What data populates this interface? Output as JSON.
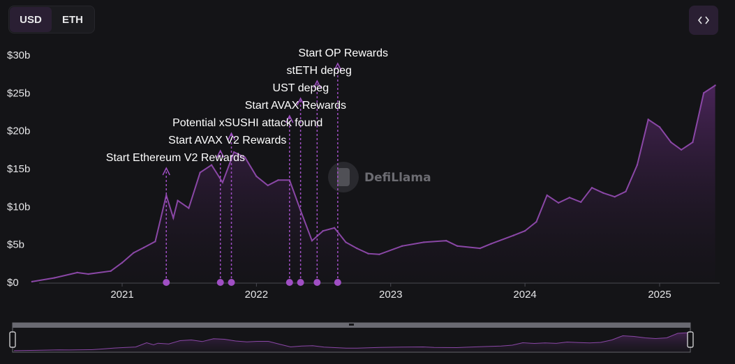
{
  "toggle": {
    "usd": "USD",
    "eth": "ETH",
    "selected": "USD"
  },
  "embed_icon": "code-brackets-icon",
  "watermark": {
    "text": "DefiLlama",
    "icon": "llama-logo-icon"
  },
  "colors": {
    "line": "#8a47a6",
    "area_top": "#5b2a6e",
    "marker": "#a04fc4",
    "background": "#141417"
  },
  "chart_data": {
    "type": "area",
    "title": "",
    "xlabel": "",
    "ylabel": "",
    "y_unit": "b",
    "ylim": [
      0,
      30
    ],
    "yticks": [
      "$0",
      "$5b",
      "$10b",
      "$15b",
      "$20b",
      "$25b",
      "$30b"
    ],
    "xticks": [
      "2021",
      "2022",
      "2023",
      "2024",
      "2025"
    ],
    "grid": false,
    "series": [
      {
        "x": [
          "2020-05",
          "2020-07",
          "2020-09",
          "2020-10",
          "2020-12",
          "2021-01",
          "2021-02",
          "2021-03",
          "2021-04",
          "2021-05",
          "2021-05-20",
          "2021-06",
          "2021-07",
          "2021-08",
          "2021-09",
          "2021-10",
          "2021-11",
          "2021-12",
          "2022-01",
          "2022-02",
          "2022-03",
          "2022-04",
          "2022-05",
          "2022-06",
          "2022-07",
          "2022-08",
          "2022-09",
          "2022-10",
          "2022-11",
          "2022-12",
          "2023-02",
          "2023-04",
          "2023-06",
          "2023-07",
          "2023-09",
          "2023-10",
          "2023-12",
          "2024-01",
          "2024-02",
          "2024-03",
          "2024-04",
          "2024-05",
          "2024-06",
          "2024-07",
          "2024-08",
          "2024-09",
          "2024-10",
          "2024-11",
          "2024-12",
          "2025-01",
          "2025-02",
          "2025-03",
          "2025-04",
          "2025-05",
          "2025-06"
        ],
        "y": [
          0.1,
          0.6,
          1.3,
          1.1,
          1.5,
          2.6,
          3.9,
          4.6,
          5.4,
          11.5,
          8.5,
          10.8,
          9.8,
          14.5,
          15.5,
          13.2,
          17.2,
          16.5,
          14.0,
          12.8,
          13.5,
          13.5,
          9.5,
          5.5,
          6.8,
          7.2,
          5.3,
          4.5,
          3.8,
          3.7,
          4.8,
          5.3,
          5.5,
          4.8,
          4.5,
          5.1,
          6.2,
          6.8,
          8.0,
          11.5,
          10.5,
          11.2,
          10.6,
          12.5,
          11.8,
          11.3,
          12.0,
          15.5,
          21.5,
          20.5,
          18.5,
          17.5,
          18.5,
          25.0,
          26.0
        ]
      }
    ],
    "annotations": [
      {
        "date": "2021-05",
        "label": "Start Ethereum V2 Rewards"
      },
      {
        "date": "2021-09-25",
        "label": "Start AVAX V2 Rewards"
      },
      {
        "date": "2021-10-25",
        "label": "Potential xSUSHI attack found"
      },
      {
        "date": "2022-04-01",
        "label": "Start AVAX Rewards"
      },
      {
        "date": "2022-05-01",
        "label": "UST depeg"
      },
      {
        "date": "2022-06-15",
        "label": "stETH depeg"
      },
      {
        "date": "2022-08-10",
        "label": "Start OP Rewards"
      }
    ],
    "annotation_order": [
      6,
      5,
      4,
      3,
      2,
      1,
      0
    ],
    "legend": "none"
  }
}
